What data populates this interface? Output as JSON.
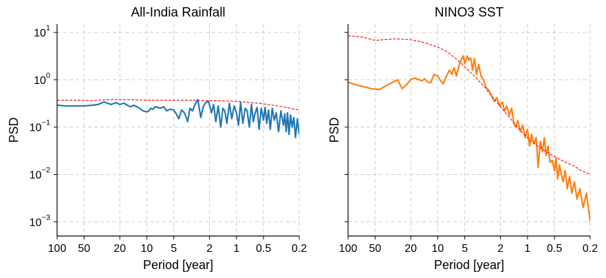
{
  "chart_data": [
    {
      "type": "line",
      "title": "All-India Rainfall",
      "xlabel": "Period [year]",
      "ylabel": "PSD",
      "xscale": "log-reversed",
      "yscale": "log",
      "xlim": [
        100,
        0.2
      ],
      "ylim": [
        0.0005,
        15
      ],
      "xticks": [
        100,
        50,
        20,
        10,
        5,
        2,
        1,
        0.5,
        0.2
      ],
      "xticklabels": [
        "100",
        "50",
        "20",
        "10",
        "5",
        "2",
        "1",
        "0.5",
        "0.2"
      ],
      "yticks": [
        0.001,
        0.01,
        0.1,
        1,
        10
      ],
      "yticklabels": [
        {
          "base": "10",
          "exp": "−3"
        },
        {
          "base": "10",
          "exp": "−2"
        },
        {
          "base": "10",
          "exp": "−1"
        },
        {
          "base": "10",
          "exp": "0"
        },
        {
          "base": "10",
          "exp": "1"
        }
      ],
      "show_yticklabels": true,
      "grid": true,
      "series": [
        {
          "color": "#1f77b4",
          "style": "solid",
          "x": [
            100,
            80,
            60,
            50,
            40,
            35,
            30,
            25,
            22,
            20,
            18,
            16,
            15,
            14,
            13,
            12,
            11,
            10,
            9.5,
            9,
            8.5,
            8,
            7.5,
            7,
            6.5,
            6,
            5.5,
            5,
            4.7,
            4.4,
            4.1,
            3.8,
            3.5,
            3.3,
            3.1,
            2.9,
            2.7,
            2.5,
            2.35,
            2.2,
            2.05,
            1.9,
            1.8,
            1.7,
            1.6,
            1.5,
            1.42,
            1.35,
            1.28,
            1.2,
            1.13,
            1.06,
            1.0,
            0.95,
            0.9,
            0.85,
            0.8,
            0.76,
            0.72,
            0.68,
            0.65,
            0.62,
            0.59,
            0.56,
            0.53,
            0.5,
            0.48,
            0.46,
            0.44,
            0.42,
            0.4,
            0.38,
            0.36,
            0.34,
            0.32,
            0.3,
            0.29,
            0.28,
            0.27,
            0.26,
            0.25,
            0.24,
            0.23,
            0.22,
            0.21,
            0.2
          ],
          "y": [
            0.29,
            0.28,
            0.28,
            0.28,
            0.29,
            0.3,
            0.34,
            0.3,
            0.33,
            0.3,
            0.32,
            0.28,
            0.27,
            0.29,
            0.27,
            0.25,
            0.22,
            0.21,
            0.22,
            0.25,
            0.24,
            0.27,
            0.26,
            0.25,
            0.27,
            0.22,
            0.24,
            0.23,
            0.19,
            0.15,
            0.23,
            0.2,
            0.13,
            0.25,
            0.22,
            0.3,
            0.38,
            0.16,
            0.27,
            0.33,
            0.35,
            0.2,
            0.3,
            0.13,
            0.28,
            0.1,
            0.25,
            0.22,
            0.12,
            0.32,
            0.15,
            0.28,
            0.2,
            0.11,
            0.33,
            0.12,
            0.25,
            0.22,
            0.1,
            0.3,
            0.13,
            0.2,
            0.26,
            0.09,
            0.25,
            0.14,
            0.26,
            0.12,
            0.23,
            0.09,
            0.25,
            0.14,
            0.2,
            0.08,
            0.22,
            0.11,
            0.19,
            0.08,
            0.2,
            0.07,
            0.18,
            0.1,
            0.16,
            0.06,
            0.15,
            0.07
          ]
        },
        {
          "color": "#ff0000",
          "style": "dashed",
          "x": [
            100,
            60,
            40,
            30,
            20,
            15,
            10,
            7,
            5,
            3,
            2,
            1.5,
            1,
            0.7,
            0.5,
            0.35,
            0.25,
            0.2
          ],
          "y": [
            0.37,
            0.37,
            0.36,
            0.38,
            0.38,
            0.38,
            0.37,
            0.37,
            0.37,
            0.37,
            0.36,
            0.36,
            0.35,
            0.33,
            0.31,
            0.28,
            0.25,
            0.23
          ]
        }
      ]
    },
    {
      "type": "line",
      "title": "NINO3 SST",
      "xlabel": "Period [year]",
      "ylabel": "PSD",
      "xscale": "log-reversed",
      "yscale": "log",
      "xlim": [
        100,
        0.2
      ],
      "ylim": [
        0.0005,
        15
      ],
      "xticks": [
        100,
        50,
        20,
        10,
        5,
        2,
        1,
        0.5,
        0.2
      ],
      "xticklabels": [
        "100",
        "50",
        "20",
        "10",
        "5",
        "2",
        "1",
        "0.5",
        "0.2"
      ],
      "yticks": [
        0.001,
        0.01,
        0.1,
        1,
        10
      ],
      "show_yticklabels": false,
      "grid": true,
      "series": [
        {
          "color": "#ff7f0e",
          "style": "solid",
          "x": [
            100,
            75,
            55,
            45,
            40,
            33,
            28,
            25,
            22,
            20,
            18,
            16,
            15,
            14,
            13,
            12,
            11,
            10,
            9.3,
            8.7,
            8,
            7.4,
            7,
            6.6,
            6.2,
            5.8,
            5.5,
            5.2,
            5,
            4.7,
            4.5,
            4.3,
            4.1,
            3.9,
            3.7,
            3.5,
            3.3,
            3.1,
            2.9,
            2.7,
            2.5,
            2.35,
            2.2,
            2.05,
            1.9,
            1.8,
            1.7,
            1.6,
            1.5,
            1.42,
            1.35,
            1.28,
            1.2,
            1.13,
            1.06,
            1.0,
            0.95,
            0.9,
            0.85,
            0.8,
            0.76,
            0.72,
            0.68,
            0.65,
            0.62,
            0.59,
            0.56,
            0.53,
            0.5,
            0.48,
            0.46,
            0.44,
            0.42,
            0.4,
            0.38,
            0.36,
            0.34,
            0.32,
            0.3,
            0.28,
            0.26,
            0.24,
            0.22,
            0.2
          ],
          "y": [
            0.88,
            0.75,
            0.65,
            0.62,
            0.7,
            0.85,
            1.0,
            0.65,
            0.8,
            1.02,
            1.08,
            1.0,
            0.95,
            1.05,
            0.9,
            0.86,
            1.3,
            1.18,
            0.95,
            0.82,
            1.2,
            1.6,
            1.3,
            1.8,
            1.2,
            2.0,
            2.6,
            3.2,
            2.2,
            3.2,
            2.6,
            2.9,
            1.6,
            2.8,
            1.3,
            2.1,
            1.2,
            1.0,
            0.7,
            0.6,
            0.45,
            0.35,
            0.42,
            0.28,
            0.34,
            0.22,
            0.28,
            0.18,
            0.25,
            0.12,
            0.1,
            0.14,
            0.08,
            0.11,
            0.06,
            0.09,
            0.04,
            0.07,
            0.045,
            0.06,
            0.014,
            0.05,
            0.03,
            0.06,
            0.025,
            0.04,
            0.018,
            0.02,
            0.012,
            0.022,
            0.008,
            0.016,
            0.01,
            0.007,
            0.012,
            0.005,
            0.009,
            0.004,
            0.007,
            0.003,
            0.005,
            0.002,
            0.004,
            0.001
          ]
        },
        {
          "color": "#ff0000",
          "style": "dashed",
          "x": [
            100,
            70,
            50,
            40,
            30,
            25,
            20,
            15,
            12,
            10,
            8,
            7,
            6,
            5,
            4,
            3,
            2.5,
            2,
            1.5,
            1.2,
            1,
            0.8,
            0.6,
            0.5,
            0.4,
            0.3,
            0.25,
            0.2
          ],
          "y": [
            8.5,
            8.0,
            6.8,
            7.0,
            7.3,
            7.2,
            7.0,
            6.3,
            5.5,
            4.9,
            4.0,
            3.3,
            2.6,
            1.9,
            1.25,
            0.7,
            0.45,
            0.27,
            0.14,
            0.085,
            0.06,
            0.042,
            0.029,
            0.024,
            0.019,
            0.015,
            0.012,
            0.01
          ]
        }
      ]
    }
  ]
}
